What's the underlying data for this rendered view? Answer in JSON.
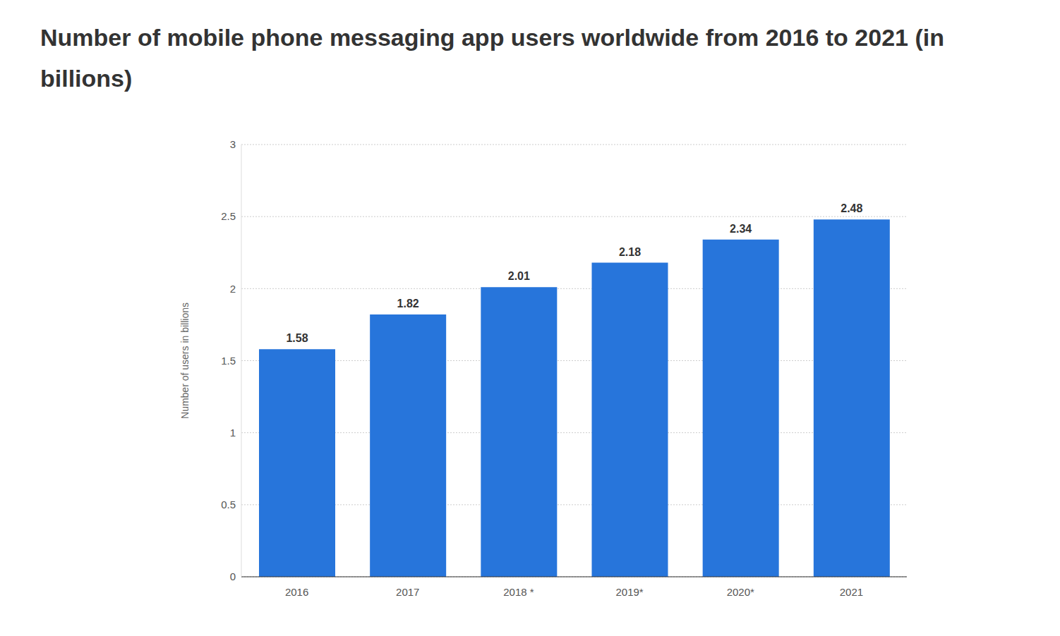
{
  "chart_data": {
    "type": "bar",
    "title": "Number of mobile phone messaging app users worldwide from 2016 to 2021 (in billions)",
    "y_label": "Number of users in billions",
    "categories": [
      "2016",
      "2017",
      "2018 *",
      "2019*",
      "2020*",
      "2021"
    ],
    "values": [
      1.58,
      1.82,
      2.01,
      2.18,
      2.34,
      2.48
    ],
    "color": "#2775db",
    "ylim": [
      0,
      3
    ],
    "yticks": [
      0,
      0.5,
      1,
      1.5,
      2,
      2.5,
      3
    ],
    "grid": true,
    "data_labels": true
  }
}
